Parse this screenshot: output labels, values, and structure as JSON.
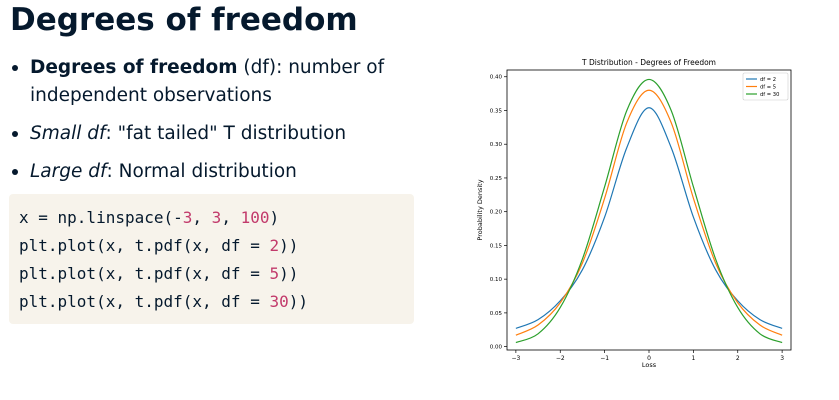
{
  "slide": {
    "title": "Degrees of freedom",
    "bullets": [
      {
        "bold": "Degrees of freedom",
        "text": " (df): number of independent observations"
      },
      {
        "italic": "Small df",
        "text": ": \"fat tailed\" T distribution"
      },
      {
        "italic": "Large df",
        "text": ": Normal distribution"
      }
    ]
  },
  "code": {
    "lines": [
      [
        {
          "t": "x = np.linspace(-"
        },
        {
          "t": "3",
          "num": true
        },
        {
          "t": ", "
        },
        {
          "t": "3",
          "num": true
        },
        {
          "t": ", "
        },
        {
          "t": "100",
          "num": true
        },
        {
          "t": ")"
        }
      ],
      [
        {
          "t": "plt.plot(x, t.pdf(x, df = "
        },
        {
          "t": "2",
          "num": true
        },
        {
          "t": "))"
        }
      ],
      [
        {
          "t": "plt.plot(x, t.pdf(x, df = "
        },
        {
          "t": "5",
          "num": true
        },
        {
          "t": "))"
        }
      ],
      [
        {
          "t": "plt.plot(x, t.pdf(x, df = "
        },
        {
          "t": "30",
          "num": true
        },
        {
          "t": "))"
        }
      ]
    ]
  },
  "chart_data": {
    "type": "line",
    "title": "T Distribution - Degrees of Freedom",
    "xlabel": "Loss",
    "ylabel": "Probability Density",
    "xlim": [
      -3.2,
      3.2
    ],
    "ylim": [
      -0.005,
      0.41
    ],
    "xticks": [
      -3,
      -2,
      -1,
      0,
      1,
      2,
      3
    ],
    "yticks": [
      0.0,
      0.05,
      0.1,
      0.15,
      0.2,
      0.25,
      0.3,
      0.35,
      0.4
    ],
    "ytick_labels": [
      "0.00",
      "0.05",
      "0.10",
      "0.15",
      "0.20",
      "0.25",
      "0.30",
      "0.35",
      "0.40"
    ],
    "grid": false,
    "legend": "top-right",
    "x": [
      -3.0,
      -2.5,
      -2.0,
      -1.5,
      -1.0,
      -0.5,
      0.0,
      0.5,
      1.0,
      1.5,
      2.0,
      2.5,
      3.0
    ],
    "series": [
      {
        "name": "df = 2",
        "color": "#1f77b4",
        "values": [
          0.027,
          0.04,
          0.068,
          0.114,
          0.192,
          0.295,
          0.354,
          0.295,
          0.192,
          0.114,
          0.068,
          0.04,
          0.027
        ]
      },
      {
        "name": "df = 5",
        "color": "#ff7f0e",
        "values": [
          0.017,
          0.032,
          0.065,
          0.124,
          0.22,
          0.332,
          0.38,
          0.332,
          0.22,
          0.124,
          0.065,
          0.032,
          0.017
        ]
      },
      {
        "name": "df = 30",
        "color": "#2ca02c",
        "values": [
          0.006,
          0.019,
          0.058,
          0.13,
          0.237,
          0.35,
          0.396,
          0.35,
          0.237,
          0.13,
          0.058,
          0.019,
          0.006
        ]
      }
    ]
  }
}
